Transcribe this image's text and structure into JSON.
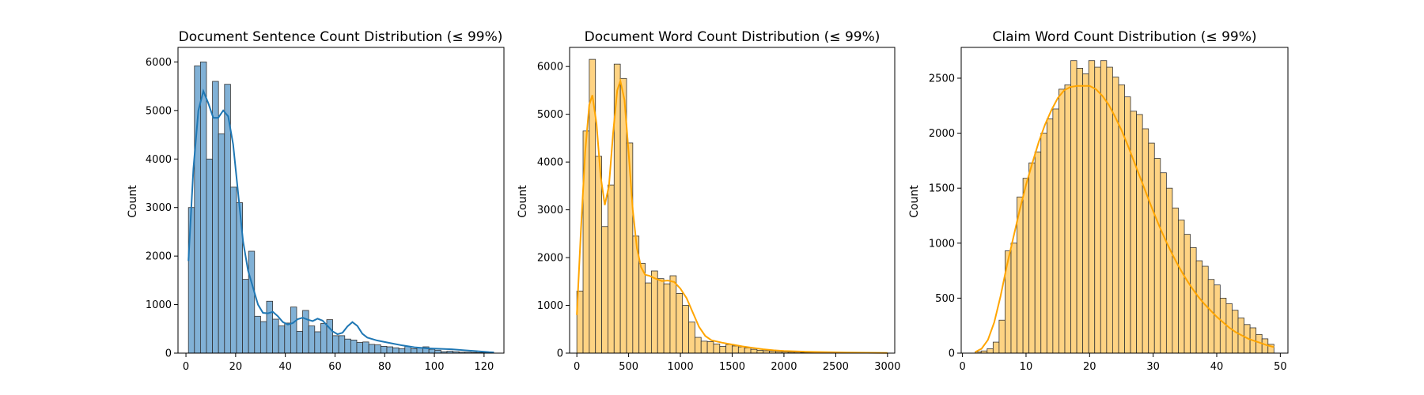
{
  "chart_data": [
    {
      "type": "bar",
      "title": "Document Sentence Count Distribution (≤ 99%)",
      "xlabel": "",
      "ylabel": "Count",
      "xlim": [
        -3.2,
        128
      ],
      "ylim": [
        0,
        6300
      ],
      "xticks": [
        0,
        20,
        40,
        60,
        80,
        100,
        120
      ],
      "yticks": [
        0,
        1000,
        2000,
        3000,
        4000,
        5000,
        6000
      ],
      "bin_start": 1,
      "bin_width": 2.42,
      "values": [
        3000,
        5920,
        6000,
        4000,
        5600,
        4520,
        5540,
        3420,
        3100,
        1520,
        2100,
        760,
        650,
        1070,
        700,
        560,
        620,
        950,
        450,
        880,
        560,
        440,
        610,
        690,
        360,
        360,
        290,
        270,
        220,
        230,
        180,
        170,
        140,
        130,
        110,
        90,
        140,
        90,
        110,
        130,
        80,
        60,
        30,
        40,
        30,
        20,
        20,
        15,
        10,
        10
      ],
      "kde": [
        [
          1,
          1900
        ],
        [
          3,
          3800
        ],
        [
          5,
          5000
        ],
        [
          7,
          5400
        ],
        [
          9,
          5150
        ],
        [
          11,
          4850
        ],
        [
          13,
          4850
        ],
        [
          15,
          5000
        ],
        [
          17,
          4880
        ],
        [
          19,
          4300
        ],
        [
          21,
          3300
        ],
        [
          23,
          2300
        ],
        [
          25,
          1700
        ],
        [
          27,
          1350
        ],
        [
          29,
          1000
        ],
        [
          31,
          830
        ],
        [
          33,
          820
        ],
        [
          35,
          850
        ],
        [
          37,
          760
        ],
        [
          39,
          640
        ],
        [
          41,
          590
        ],
        [
          43,
          620
        ],
        [
          45,
          700
        ],
        [
          47,
          730
        ],
        [
          49,
          690
        ],
        [
          51,
          660
        ],
        [
          53,
          710
        ],
        [
          55,
          670
        ],
        [
          57,
          560
        ],
        [
          59,
          450
        ],
        [
          61,
          390
        ],
        [
          63,
          420
        ],
        [
          65,
          550
        ],
        [
          67,
          640
        ],
        [
          69,
          560
        ],
        [
          71,
          400
        ],
        [
          73,
          320
        ],
        [
          77,
          260
        ],
        [
          82,
          210
        ],
        [
          87,
          160
        ],
        [
          92,
          120
        ],
        [
          97,
          100
        ],
        [
          102,
          90
        ],
        [
          107,
          80
        ],
        [
          112,
          60
        ],
        [
          117,
          40
        ],
        [
          122,
          20
        ],
        [
          124,
          15
        ]
      ],
      "bar_color": "#81b1d6",
      "bar_edge": "#333333",
      "kde_color": "#1f77b4"
    },
    {
      "type": "bar",
      "title": "Document Word Count Distribution (≤ 99%)",
      "xlabel": "",
      "ylabel": "Count",
      "xlim": [
        -70,
        3070
      ],
      "ylim": [
        0,
        6400
      ],
      "xticks": [
        0,
        500,
        1000,
        1500,
        2000,
        2500,
        3000
      ],
      "yticks": [
        0,
        1000,
        2000,
        3000,
        4000,
        5000,
        6000
      ],
      "bin_start": 0,
      "bin_width": 60,
      "values": [
        1300,
        4650,
        6150,
        4120,
        2650,
        3520,
        6050,
        5750,
        4400,
        2450,
        1880,
        1470,
        1720,
        1560,
        1450,
        1620,
        1250,
        1000,
        650,
        330,
        250,
        240,
        190,
        140,
        180,
        150,
        130,
        110,
        80,
        60,
        50,
        40,
        30,
        25,
        20,
        20,
        15,
        15,
        10,
        10,
        10,
        8,
        8,
        6,
        6,
        5,
        5,
        4,
        4,
        3
      ],
      "kde": [
        [
          0,
          800
        ],
        [
          40,
          2600
        ],
        [
          80,
          4200
        ],
        [
          120,
          5200
        ],
        [
          150,
          5400
        ],
        [
          190,
          4800
        ],
        [
          230,
          3700
        ],
        [
          270,
          3100
        ],
        [
          310,
          3500
        ],
        [
          350,
          4600
        ],
        [
          390,
          5500
        ],
        [
          420,
          5700
        ],
        [
          460,
          5300
        ],
        [
          500,
          4200
        ],
        [
          540,
          3000
        ],
        [
          580,
          2200
        ],
        [
          620,
          1800
        ],
        [
          660,
          1640
        ],
        [
          700,
          1620
        ],
        [
          760,
          1560
        ],
        [
          820,
          1510
        ],
        [
          880,
          1520
        ],
        [
          940,
          1490
        ],
        [
          1000,
          1350
        ],
        [
          1060,
          1150
        ],
        [
          1120,
          850
        ],
        [
          1180,
          550
        ],
        [
          1240,
          360
        ],
        [
          1300,
          270
        ],
        [
          1400,
          220
        ],
        [
          1500,
          180
        ],
        [
          1600,
          140
        ],
        [
          1700,
          110
        ],
        [
          1800,
          80
        ],
        [
          1900,
          60
        ],
        [
          2000,
          45
        ],
        [
          2200,
          30
        ],
        [
          2400,
          20
        ],
        [
          2600,
          12
        ],
        [
          2800,
          8
        ],
        [
          3000,
          5
        ]
      ],
      "bar_color": "#fed383",
      "bar_edge": "#333333",
      "kde_color": "#ffa500"
    },
    {
      "type": "bar",
      "title": "Claim Word Count Distribution (≤ 99%)",
      "xlabel": "",
      "ylabel": "Count",
      "xlim": [
        -0.2,
        51.2
      ],
      "ylim": [
        0,
        2780
      ],
      "xticks": [
        0,
        10,
        20,
        30,
        40,
        50
      ],
      "yticks": [
        0,
        500,
        1000,
        1500,
        2000,
        2500
      ],
      "bin_start": 2,
      "bin_width": 0.94,
      "values": [
        10,
        20,
        40,
        100,
        300,
        930,
        1000,
        1420,
        1590,
        1730,
        1830,
        2000,
        2130,
        2220,
        2400,
        2440,
        2660,
        2590,
        2540,
        2660,
        2600,
        2660,
        2600,
        2510,
        2440,
        2330,
        2200,
        2170,
        2040,
        1910,
        1770,
        1640,
        1500,
        1320,
        1210,
        1080,
        960,
        840,
        790,
        670,
        620,
        500,
        450,
        390,
        320,
        260,
        230,
        170,
        130,
        80
      ],
      "kde": [
        [
          2,
          10
        ],
        [
          3,
          40
        ],
        [
          4,
          120
        ],
        [
          5,
          280
        ],
        [
          6,
          520
        ],
        [
          7,
          800
        ],
        [
          8,
          1050
        ],
        [
          9,
          1300
        ],
        [
          10,
          1530
        ],
        [
          11,
          1730
        ],
        [
          12,
          1920
        ],
        [
          13,
          2080
        ],
        [
          14,
          2210
        ],
        [
          15,
          2320
        ],
        [
          16,
          2390
        ],
        [
          17,
          2420
        ],
        [
          18,
          2430
        ],
        [
          19,
          2430
        ],
        [
          20,
          2430
        ],
        [
          21,
          2400
        ],
        [
          22,
          2340
        ],
        [
          23,
          2260
        ],
        [
          24,
          2150
        ],
        [
          25,
          2030
        ],
        [
          26,
          1890
        ],
        [
          27,
          1740
        ],
        [
          28,
          1590
        ],
        [
          29,
          1440
        ],
        [
          30,
          1290
        ],
        [
          31,
          1150
        ],
        [
          32,
          1020
        ],
        [
          33,
          900
        ],
        [
          34,
          790
        ],
        [
          35,
          690
        ],
        [
          36,
          600
        ],
        [
          37,
          520
        ],
        [
          38,
          450
        ],
        [
          39,
          390
        ],
        [
          40,
          330
        ],
        [
          41,
          280
        ],
        [
          42,
          230
        ],
        [
          43,
          190
        ],
        [
          44,
          160
        ],
        [
          45,
          130
        ],
        [
          46,
          110
        ],
        [
          47,
          90
        ],
        [
          48,
          70
        ],
        [
          49,
          55
        ]
      ],
      "bar_color": "#fed383",
      "bar_edge": "#333333",
      "kde_color": "#ffa500"
    }
  ]
}
